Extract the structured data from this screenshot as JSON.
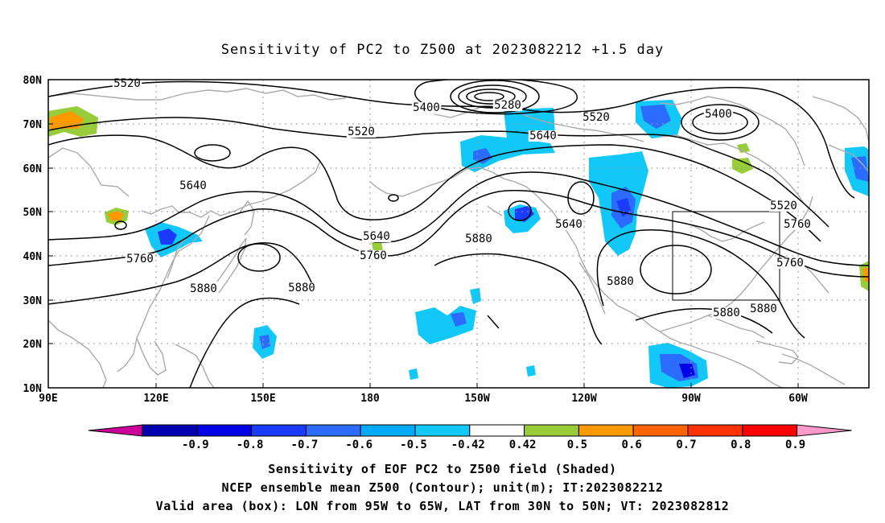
{
  "title": "Sensitivity of PC2 to Z500 at 2023082212 +1.5 day",
  "map": {
    "lat_labels": [
      "80N",
      "70N",
      "60N",
      "50N",
      "40N",
      "30N",
      "20N",
      "10N"
    ],
    "lon_labels": [
      "90E",
      "120E",
      "150E",
      "180",
      "150W",
      "120W",
      "90W",
      "60W"
    ],
    "contour_labels": [
      {
        "text": "5520"
      },
      {
        "text": "5400"
      },
      {
        "text": "5280"
      },
      {
        "text": "5520"
      },
      {
        "text": "5400"
      },
      {
        "text": "5520"
      },
      {
        "text": "5640"
      },
      {
        "text": "5640"
      },
      {
        "text": "5520"
      },
      {
        "text": "5640"
      },
      {
        "text": "5760"
      },
      {
        "text": "5640"
      },
      {
        "text": "5760"
      },
      {
        "text": "5880"
      },
      {
        "text": "5760"
      },
      {
        "text": "5760"
      },
      {
        "text": "5880"
      },
      {
        "text": "5880"
      },
      {
        "text": "5880"
      },
      {
        "text": "5880"
      },
      {
        "text": "5880"
      }
    ],
    "valid_box": {
      "lon_from": "95W",
      "lon_to": "65W",
      "lat_from": "30N",
      "lat_to": "50N"
    }
  },
  "colorbar": {
    "labels": [
      "-0.9",
      "-0.8",
      "-0.7",
      "-0.6",
      "-0.5",
      "-0.42",
      "0.42",
      "0.5",
      "0.6",
      "0.7",
      "0.8",
      "0.9"
    ],
    "colors": [
      "#0000b0",
      "#0000e6",
      "#1b3cff",
      "#2c6bff",
      "#00aaff",
      "#12c8f8",
      "#ffffff",
      "#98cc3a",
      "#ff9900",
      "#ff6400",
      "#ff3200",
      "#ff0000"
    ],
    "left_tip_color": "#cc0099",
    "right_tip_color": "#ff99cc"
  },
  "captions": {
    "line1": "Sensitivity of EOF PC2 to Z500 field (Shaded)",
    "line2": "NCEP ensemble mean Z500 (Contour); unit(m); IT:2023082212",
    "line3": "Valid area (box): LON from 95W to 65W, LAT from 30N to 50N; VT: 2023082812"
  }
}
